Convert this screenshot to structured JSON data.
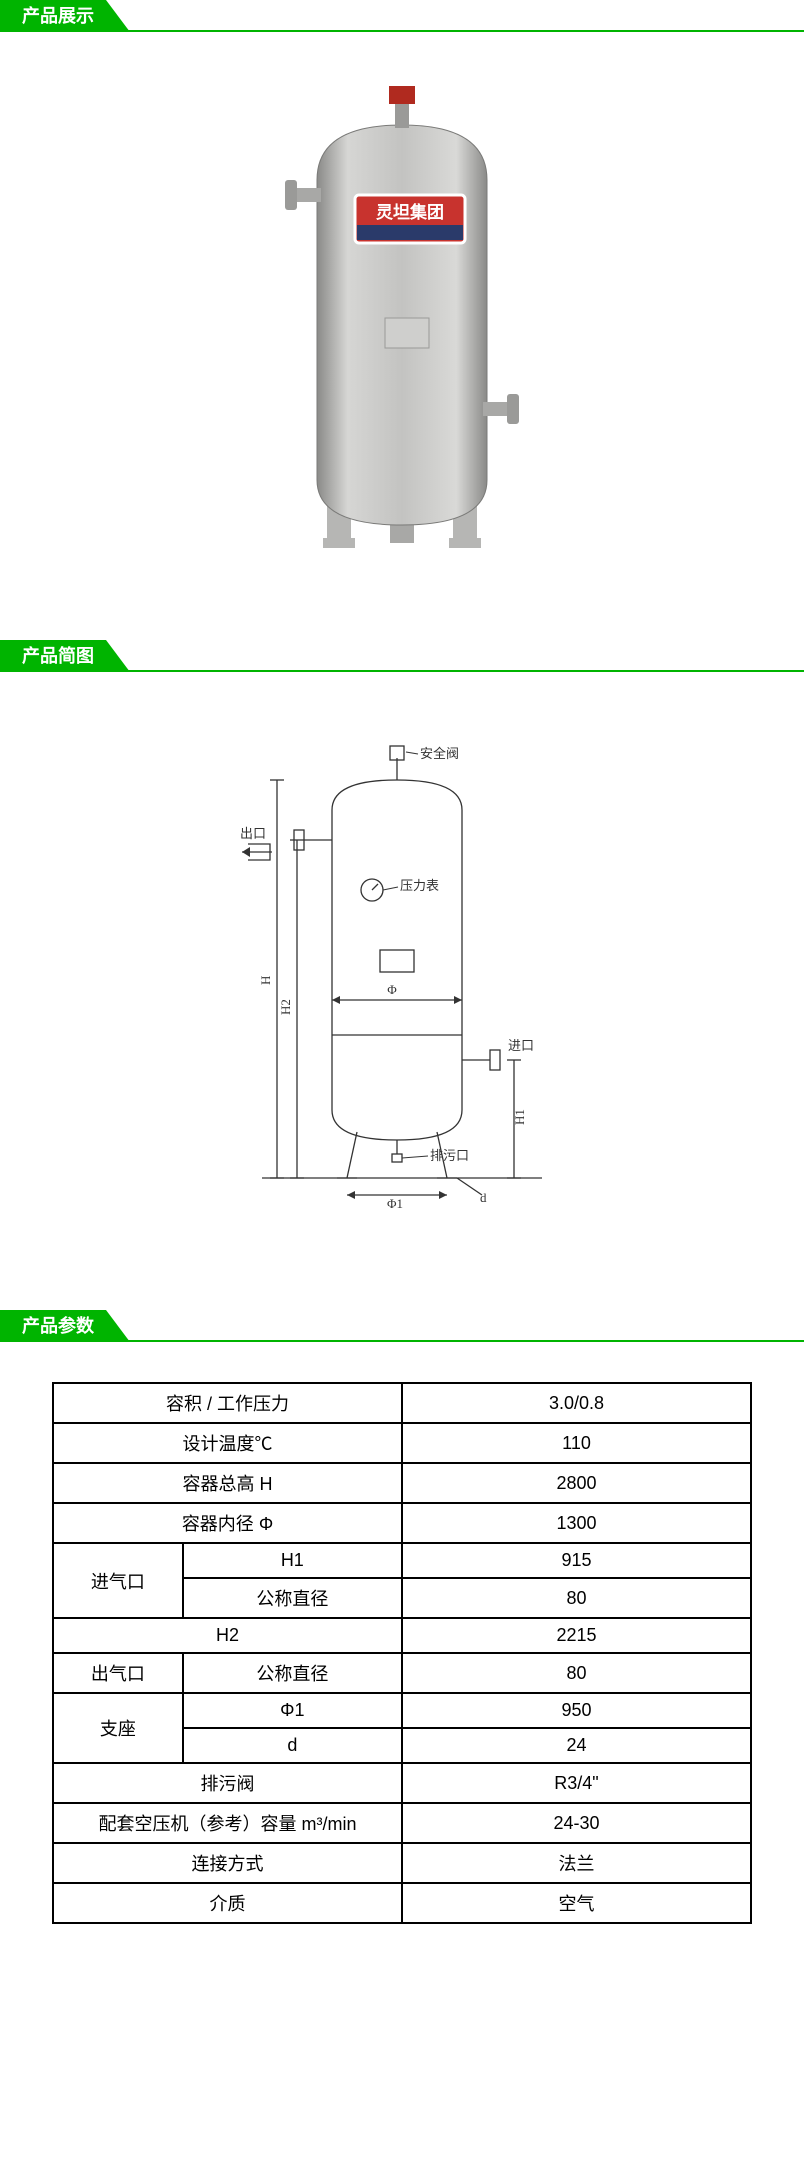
{
  "sections": {
    "display": {
      "title": "产品展示"
    },
    "diagram": {
      "title": "产品简图"
    },
    "params": {
      "title": "产品参数"
    }
  },
  "photo": {
    "tank_body_color": "#bfbfbd",
    "tank_shadow_color": "#9a9b99",
    "tank_highlight_color": "#e3e3e1",
    "plate_bg": "#c8332e",
    "plate_text_top": "灵坦集团",
    "plate_text_color": "#ffffff",
    "valve_color": "#b02a1f",
    "leg_color": "#b6b6b4",
    "flange_color": "#a8a8a6"
  },
  "diagram_labels": {
    "safety_valve": "安全阀",
    "outlet": "出口",
    "pressure_gauge": "压力表",
    "inlet": "进口",
    "drain": "排污口",
    "H": "H",
    "H1": "H1",
    "H2": "H2",
    "phi": "Φ",
    "phi1": "Φ1",
    "d": "d",
    "stroke": "#333333",
    "label_fontsize": 13
  },
  "params": {
    "rows": [
      {
        "label_span": 2,
        "label": "容积 / 工作压力",
        "value": "3.0/0.8"
      },
      {
        "label_span": 2,
        "label": "设计温度℃",
        "value": "110"
      },
      {
        "label_span": 2,
        "label": "容器总高 H",
        "value": "2800"
      },
      {
        "label_span": 2,
        "label": "容器内径 Φ",
        "value": "1300"
      },
      {
        "group": "进气口",
        "group_rowspan": 2,
        "sub": "H1",
        "value": "915"
      },
      {
        "sub": "公称直径",
        "value": "80"
      },
      {
        "label_span": 2,
        "label": "H2",
        "value": "2215"
      },
      {
        "group": "出气口",
        "group_rowspan": 1,
        "sub": "公称直径",
        "value": "80"
      },
      {
        "group": "支座",
        "group_rowspan": 2,
        "sub": "Φ1",
        "value": "950"
      },
      {
        "sub": "d",
        "value": "24"
      },
      {
        "label_span": 2,
        "label": "排污阀",
        "value": "R3/4\""
      },
      {
        "label_span": 2,
        "label": "配套空压机（参考）容量 m³/min",
        "value": "24-30"
      },
      {
        "label_span": 2,
        "label": "连接方式",
        "value": "法兰"
      },
      {
        "label_span": 2,
        "label": "介质",
        "value": "空气"
      }
    ],
    "col_widths": {
      "group": 130,
      "sub": 220,
      "value": 350
    }
  }
}
